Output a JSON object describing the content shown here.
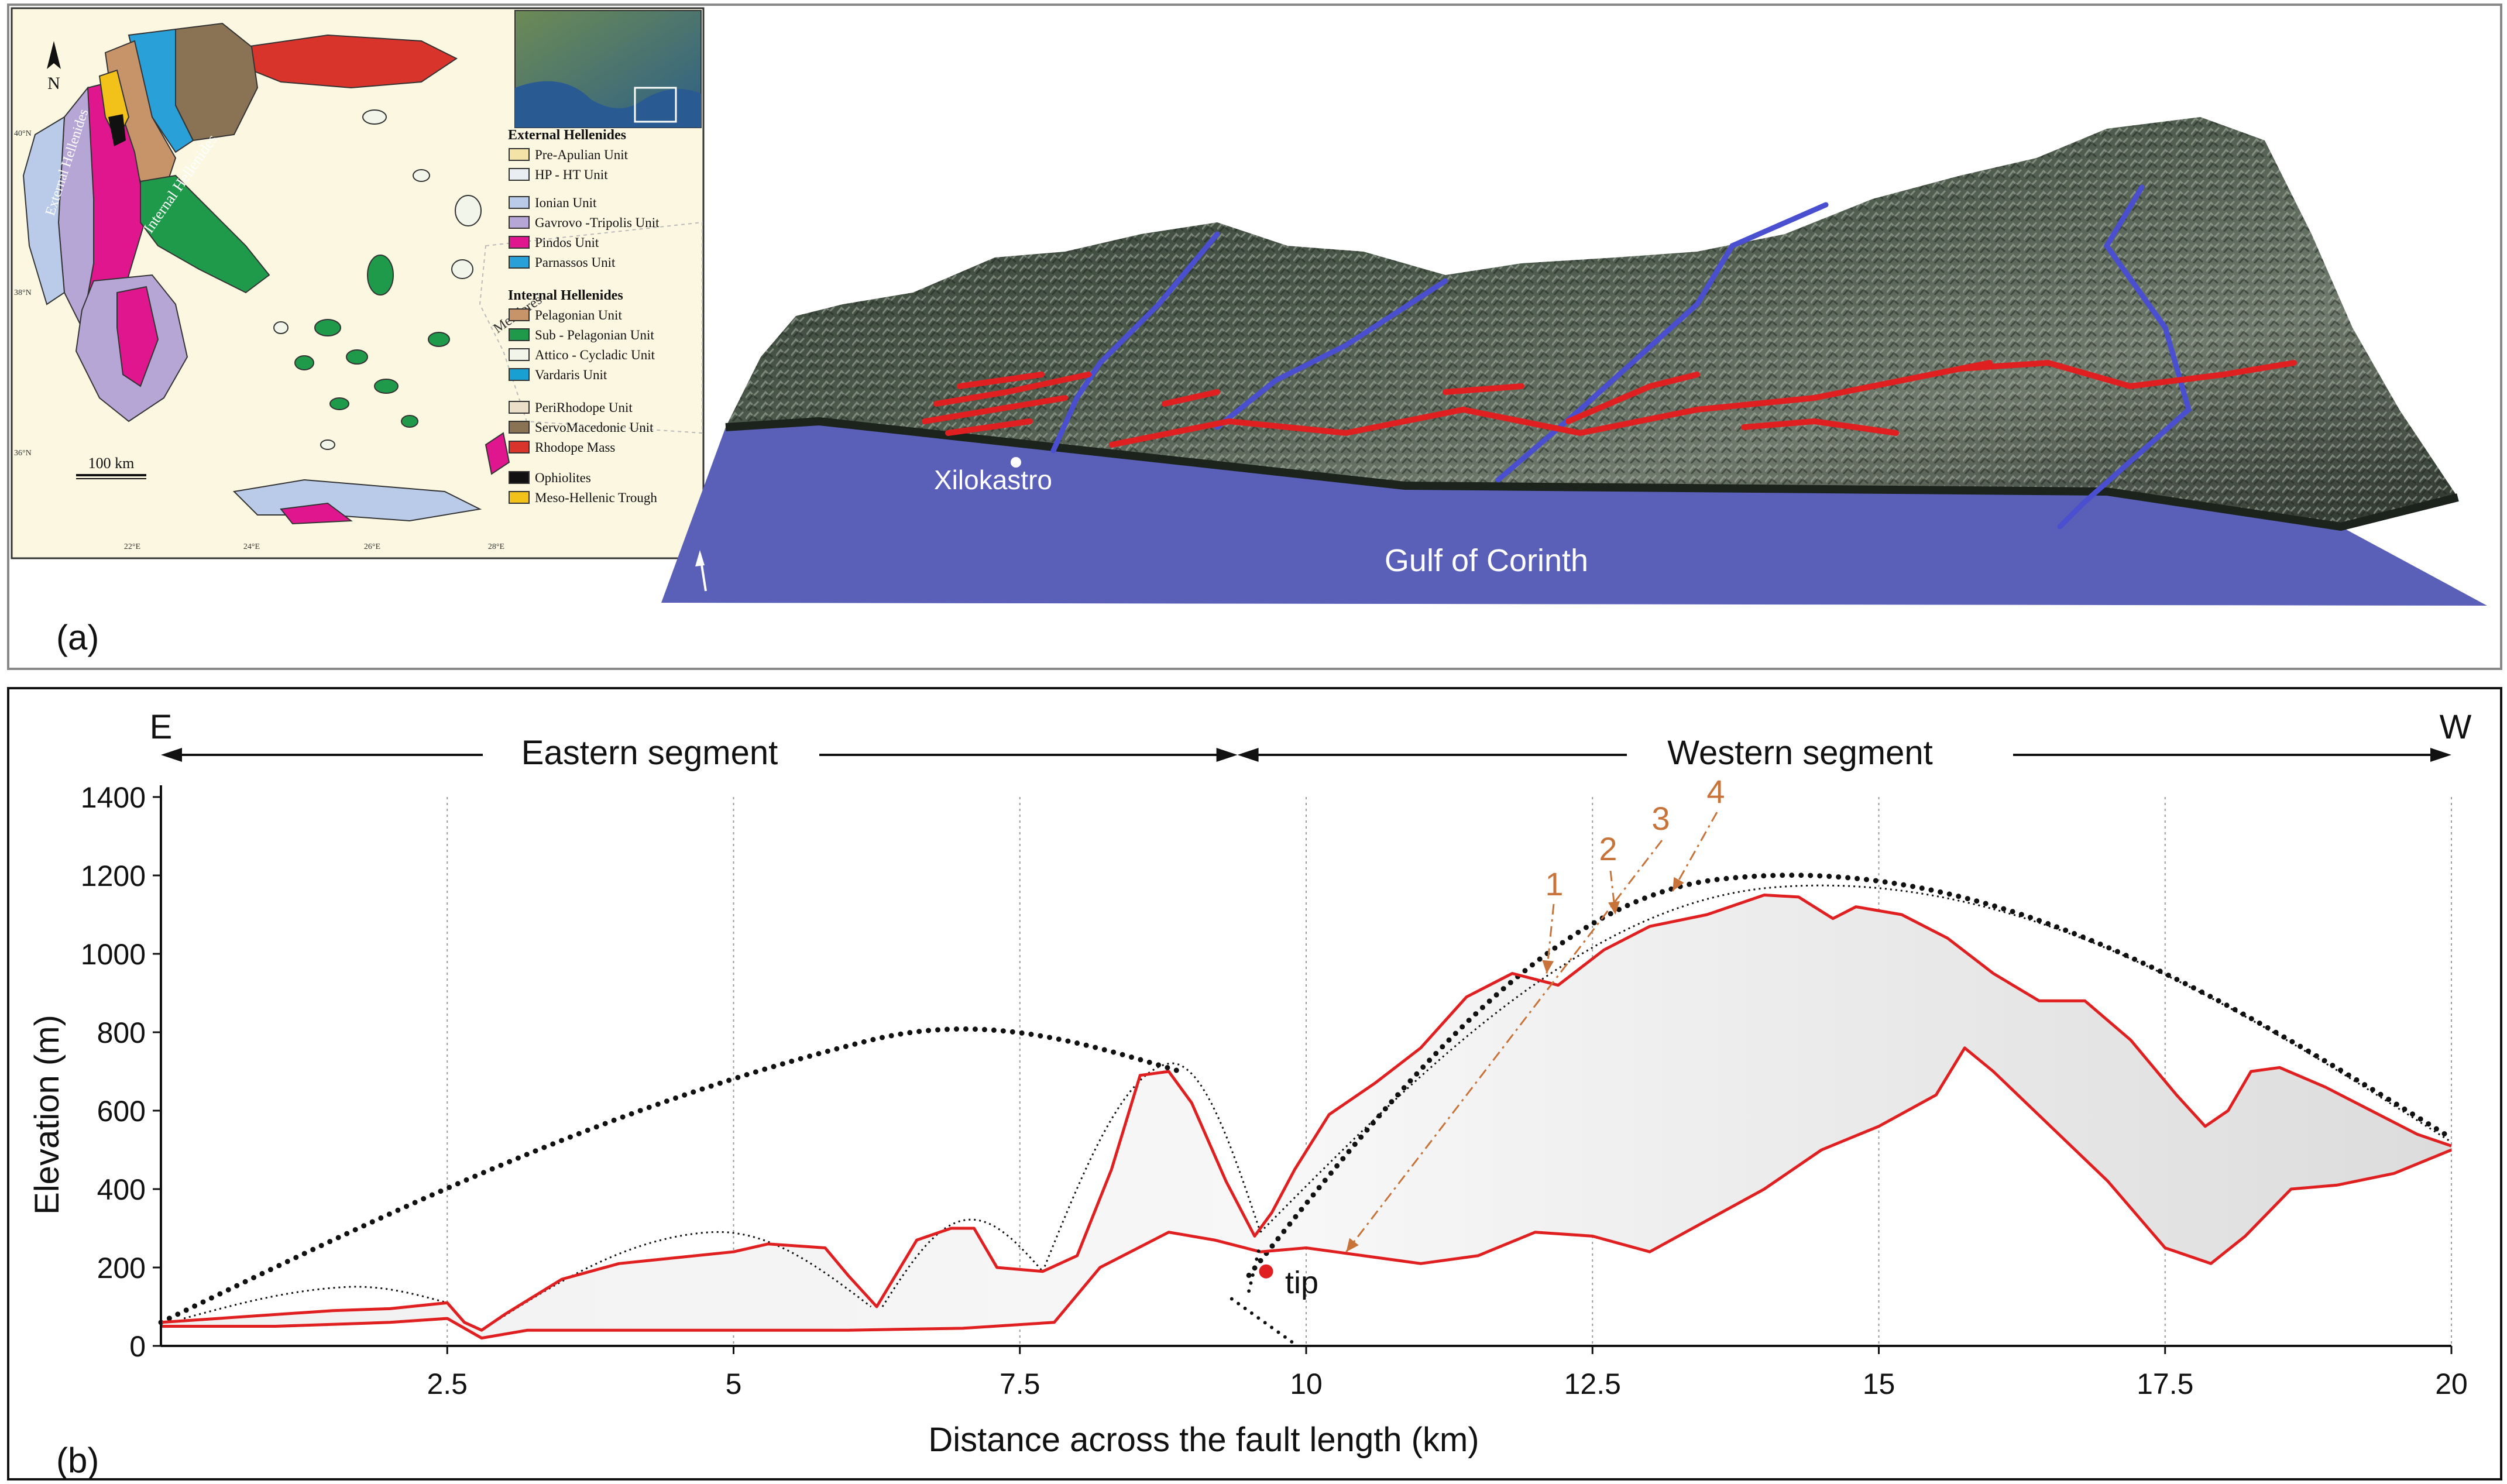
{
  "panel_a": {
    "label": "(a)",
    "map": {
      "north": "N",
      "scalebar": "100 km",
      "lat_labels": [
        "40°N",
        "38°N",
        "36°N"
      ],
      "lon_labels": [
        "22°E",
        "24°E",
        "26°E",
        "28°E"
      ],
      "map_labels": [
        "External Hellenides",
        "Internal Hellenides",
        "Menderes"
      ],
      "legend": {
        "external_title": "External Hellenides",
        "external": [
          {
            "name": "Pre-Apulian Unit",
            "color": "#f3e3a6"
          },
          {
            "name": "HP - HT Unit",
            "color": "#e9eef2"
          },
          {
            "name": "Ionian Unit",
            "color": "#b9cbe8"
          },
          {
            "name": "Gavrovo -Tripolis Unit",
            "color": "#b6a6d6"
          },
          {
            "name": "Pindos Unit",
            "color": "#e0168f"
          },
          {
            "name": "Parnassos Unit",
            "color": "#2aa0d8"
          }
        ],
        "internal_title": "Internal Hellenides",
        "internal": [
          {
            "name": "Pelagonian Unit",
            "color": "#c7946a"
          },
          {
            "name": "Sub - Pelagonian Unit",
            "color": "#1f9a4a"
          },
          {
            "name": "Attico - Cycladic Unit",
            "color": "#f1f5ea"
          },
          {
            "name": "Vardaris Unit",
            "color": "#19a0d2"
          }
        ],
        "other": [
          {
            "name": "PeriRhodope Unit",
            "color": "#eadfc8"
          },
          {
            "name": "ServoMacedonic Unit",
            "color": "#8a7354"
          },
          {
            "name": "Rhodope Mass",
            "color": "#d9342b"
          },
          {
            "name": "Ophiolites",
            "color": "#111111"
          },
          {
            "name": "Meso-Hellenic Trough",
            "color": "#f2c21b"
          }
        ]
      }
    },
    "dem": {
      "place_label": "Xilokastro",
      "sea_label": "Gulf of Corinth",
      "sea_color": "#5a5fb8",
      "fault_color": "#e02020",
      "river_color": "#4a4fd0"
    }
  },
  "panel_b": {
    "label": "(b)",
    "left_end": "E",
    "right_end": "W",
    "segments": [
      {
        "name": "Eastern segment",
        "from_km": 0,
        "to_km": 9.4
      },
      {
        "name": "Western segment",
        "from_km": 9.4,
        "to_km": 20
      }
    ],
    "tip_label": "tip",
    "arrow_labels": [
      "1",
      "2",
      "3",
      "4"
    ],
    "arrow_color": "#c8733a",
    "chart_data": {
      "type": "area",
      "xlabel": "Distance across the fault length (km)",
      "ylabel": "Elevation (m)",
      "xlim": [
        0,
        20
      ],
      "ylim": [
        0,
        1400
      ],
      "xticks": [
        2.5,
        5,
        7.5,
        10,
        12.5,
        15,
        17.5,
        20
      ],
      "yticks": [
        0,
        200,
        400,
        600,
        800,
        1000,
        1200,
        1400
      ],
      "grid": "vertical",
      "line_color": "#e02020",
      "series": [
        {
          "x": [
            0,
            0.5,
            1,
            1.5,
            2,
            2.5,
            2.65,
            2.8,
            3,
            3.5,
            4,
            4.5,
            5,
            5.3,
            5.8,
            6.0,
            6.25,
            6.6,
            6.9,
            7.1,
            7.3,
            7.7,
            8.0,
            8.3,
            8.55,
            8.8,
            9.0,
            9.3,
            9.55,
            9.7,
            9.9,
            10.2,
            10.6,
            11.0,
            11.4,
            11.8,
            12.2,
            12.6,
            13.0,
            13.5,
            14.0,
            14.3,
            14.6,
            14.8,
            15.2,
            15.6,
            16.0,
            16.4,
            16.8,
            17.2,
            17.6,
            17.85,
            18.05,
            18.25,
            18.5,
            18.9,
            19.3,
            19.7,
            20.0
          ],
          "y": [
            60,
            70,
            80,
            90,
            95,
            110,
            60,
            40,
            80,
            170,
            210,
            225,
            240,
            260,
            250,
            180,
            100,
            270,
            300,
            300,
            200,
            190,
            230,
            450,
            690,
            700,
            620,
            420,
            280,
            340,
            450,
            590,
            670,
            760,
            890,
            950,
            920,
            1010,
            1070,
            1100,
            1150,
            1145,
            1090,
            1120,
            1100,
            1040,
            950,
            880,
            880,
            780,
            640,
            560,
            600,
            700,
            710,
            660,
            600,
            540,
            510
          ]
        },
        {
          "x": [
            0,
            1,
            2,
            2.5,
            2.8,
            3.2,
            4,
            5,
            6,
            7,
            7.8,
            8.2,
            8.8,
            9.2,
            9.6,
            10,
            10.5,
            11,
            11.5,
            12,
            12.5,
            13,
            13.5,
            14,
            14.5,
            15,
            15.5,
            15.75,
            16.0,
            16.5,
            17,
            17.5,
            17.9,
            18.2,
            18.6,
            19,
            19.5,
            20
          ],
          "y": [
            50,
            50,
            60,
            70,
            20,
            40,
            40,
            40,
            40,
            45,
            60,
            200,
            290,
            270,
            240,
            250,
            230,
            210,
            230,
            290,
            280,
            240,
            320,
            400,
            500,
            560,
            640,
            760,
            700,
            560,
            420,
            250,
            210,
            280,
            400,
            410,
            440,
            500
          ]
        }
      ]
    }
  }
}
